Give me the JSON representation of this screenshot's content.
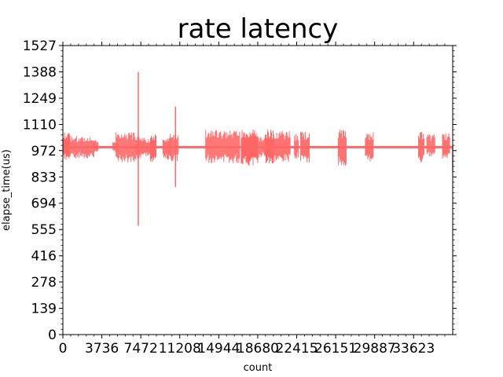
{
  "chart_data": {
    "type": "line",
    "title": "rate latency",
    "xlabel": "count",
    "ylabel": "elapse_time(us)",
    "xlim": [
      0,
      37370
    ],
    "ylim": [
      0,
      1527
    ],
    "x_ticks": [
      0,
      3736,
      7472,
      11208,
      14944,
      18680,
      22415,
      26151,
      29887,
      33623
    ],
    "x_tick_labels": [
      "0",
      "3736",
      "7472",
      "11208",
      "14944",
      "18680",
      "22415",
      "26151",
      "29887",
      "33623"
    ],
    "y_ticks": [
      0,
      139,
      278,
      416,
      555,
      694,
      833,
      972,
      1110,
      1249,
      1388,
      1527
    ],
    "y_tick_labels": [
      "0",
      "139",
      "278",
      "416",
      "555",
      "694",
      "833",
      "972",
      "1110",
      "1249",
      "1388",
      "1527"
    ],
    "grid": false,
    "line_color": "#ff6666",
    "baseline": 990,
    "spikes": [
      {
        "x": 7230,
        "y": 1388
      },
      {
        "x": 7230,
        "y": 575
      },
      {
        "x": 10800,
        "y": 1205
      },
      {
        "x": 10800,
        "y": 780
      },
      {
        "x": 37370,
        "y": 865
      }
    ],
    "bursts": [
      {
        "x_start": 0,
        "x_end": 700,
        "high": 1070,
        "low": 915
      },
      {
        "x_start": 700,
        "x_end": 3000,
        "high": 1050,
        "low": 930
      },
      {
        "x_start": 3000,
        "x_end": 3400,
        "high": 1030,
        "low": 960
      },
      {
        "x_start": 4800,
        "x_end": 5300,
        "high": 1020,
        "low": 960
      },
      {
        "x_start": 5100,
        "x_end": 7000,
        "high": 1070,
        "low": 910
      },
      {
        "x_start": 7000,
        "x_end": 7600,
        "high": 1060,
        "low": 930
      },
      {
        "x_start": 7600,
        "x_end": 8400,
        "high": 1040,
        "low": 940
      },
      {
        "x_start": 8400,
        "x_end": 9000,
        "high": 1060,
        "low": 910
      },
      {
        "x_start": 9600,
        "x_end": 10300,
        "high": 1040,
        "low": 920
      },
      {
        "x_start": 10300,
        "x_end": 11100,
        "high": 1070,
        "low": 910
      },
      {
        "x_start": 13700,
        "x_end": 17000,
        "high": 1085,
        "low": 905
      },
      {
        "x_start": 17100,
        "x_end": 18700,
        "high": 1085,
        "low": 890
      },
      {
        "x_start": 18700,
        "x_end": 19400,
        "high": 1050,
        "low": 930
      },
      {
        "x_start": 19400,
        "x_end": 20200,
        "high": 1085,
        "low": 900
      },
      {
        "x_start": 20200,
        "x_end": 21800,
        "high": 1080,
        "low": 910
      },
      {
        "x_start": 22200,
        "x_end": 22600,
        "high": 1060,
        "low": 930
      },
      {
        "x_start": 22800,
        "x_end": 23700,
        "high": 1075,
        "low": 905
      },
      {
        "x_start": 26400,
        "x_end": 27200,
        "high": 1090,
        "low": 890
      },
      {
        "x_start": 29000,
        "x_end": 29800,
        "high": 1070,
        "low": 905
      },
      {
        "x_start": 34100,
        "x_end": 34700,
        "high": 1080,
        "low": 900
      },
      {
        "x_start": 34900,
        "x_end": 35700,
        "high": 1060,
        "low": 940
      },
      {
        "x_start": 36400,
        "x_end": 37100,
        "high": 1070,
        "low": 920
      }
    ]
  }
}
